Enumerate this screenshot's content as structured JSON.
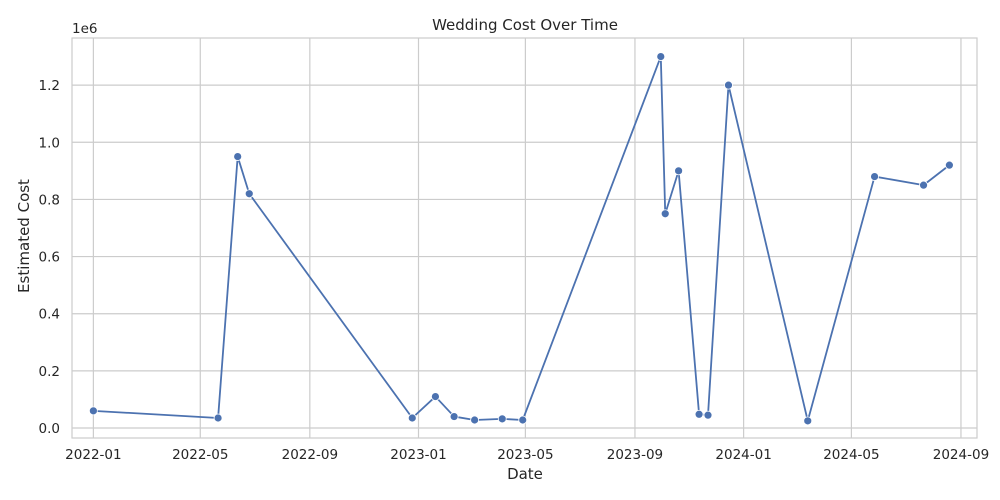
{
  "chart_data": {
    "type": "line",
    "title": "Wedding Cost Over Time",
    "xlabel": "Date",
    "ylabel": "Estimated Cost",
    "y_offset_label": "1e6",
    "x_tick_labels": [
      "2022-01",
      "2022-05",
      "2022-09",
      "2023-01",
      "2023-05",
      "2023-09",
      "2024-01",
      "2024-05",
      "2024-09"
    ],
    "x_tick_dates": [
      "2022-01-01",
      "2022-05-01",
      "2022-09-01",
      "2023-01-01",
      "2023-05-01",
      "2023-09-01",
      "2024-01-01",
      "2024-05-01",
      "2024-09-01"
    ],
    "y_tick_labels": [
      "0.0",
      "0.2",
      "0.4",
      "0.6",
      "0.8",
      "1.0",
      "1.2"
    ],
    "y_tick_values": [
      0,
      200000,
      400000,
      600000,
      800000,
      1000000,
      1200000
    ],
    "xlim": [
      "2021-12-08",
      "2024-09-19"
    ],
    "ylim": [
      -35000,
      1365000
    ],
    "grid": true,
    "series": [
      {
        "color": "#4c72b0",
        "marker": "circle",
        "points": [
          {
            "x": "2022-01-01",
            "y": 60000
          },
          {
            "x": "2022-05-21",
            "y": 35000
          },
          {
            "x": "2022-06-12",
            "y": 950000
          },
          {
            "x": "2022-06-25",
            "y": 820000
          },
          {
            "x": "2022-12-25",
            "y": 35000
          },
          {
            "x": "2023-01-20",
            "y": 110000
          },
          {
            "x": "2023-02-10",
            "y": 40000
          },
          {
            "x": "2023-03-05",
            "y": 28000
          },
          {
            "x": "2023-04-05",
            "y": 32000
          },
          {
            "x": "2023-04-28",
            "y": 28000
          },
          {
            "x": "2023-09-30",
            "y": 1300000
          },
          {
            "x": "2023-10-05",
            "y": 750000
          },
          {
            "x": "2023-10-20",
            "y": 900000
          },
          {
            "x": "2023-11-12",
            "y": 48000
          },
          {
            "x": "2023-11-22",
            "y": 45000
          },
          {
            "x": "2023-12-15",
            "y": 1200000
          },
          {
            "x": "2024-03-13",
            "y": 25000
          },
          {
            "x": "2024-05-27",
            "y": 880000
          },
          {
            "x": "2024-07-21",
            "y": 850000
          },
          {
            "x": "2024-08-19",
            "y": 920000
          }
        ]
      }
    ]
  }
}
